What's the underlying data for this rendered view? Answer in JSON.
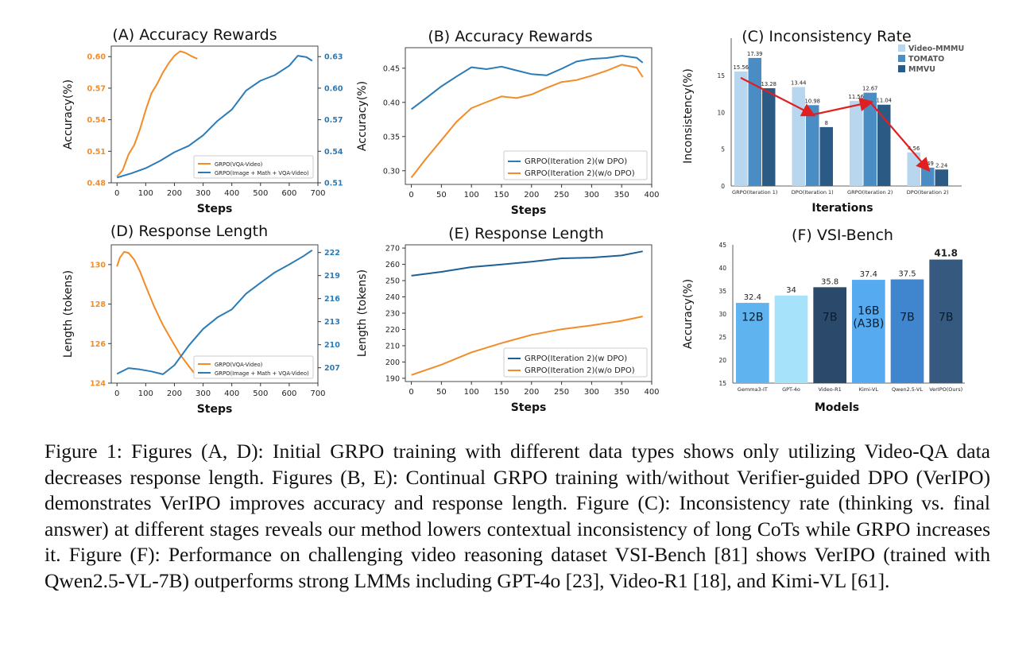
{
  "caption": "Figure 1: Figures (A, D): Initial GRPO training with different data types shows only utilizing Video-QA data decreases response length. Figures (B, E): Continual GRPO training with/without Verifier-guided DPO (VerIPO) demonstrates VerIPO improves accuracy and response length. Figure (C): Inconsistency rate (thinking vs.  final answer) at different stages reveals our method lowers contextual inconsistency of long CoTs while GRPO increases it.  Figure (F): Performance on challenging video reasoning dataset VSI-Bench [81] shows VerIPO (trained with Qwen2.5-VL-7B) outperforms strong LMMs including GPT-4o [23], Video-R1 [18], and Kimi-VL [61].",
  "colors": {
    "orange": "#f28c28",
    "blue": "#2c7bb6",
    "darkblue": "#1f5f94",
    "red": "#e02020"
  },
  "chart_data": [
    {
      "id": "A",
      "type": "line",
      "title": "(A)  Accuracy Rewards",
      "xlabel": "Steps",
      "ylabel": "Accuracy(%)",
      "xlim": [
        -20,
        700
      ],
      "xticks": [
        "0",
        "100",
        "200",
        "300",
        "400",
        "500",
        "600",
        "700"
      ],
      "ylim": [
        0.48,
        0.61
      ],
      "yticks": [
        "0.48",
        "0.51",
        "0.54",
        "0.57",
        "0.60"
      ],
      "y2lim": [
        0.51,
        0.64
      ],
      "y2ticks": [
        "0.51",
        "0.54",
        "0.57",
        "0.60",
        "0.63"
      ],
      "legend_position": "lower-right",
      "series": [
        {
          "name": "GRPO(VQA-Video)",
          "axis": "left",
          "color": "orange",
          "x": [
            0,
            20,
            40,
            60,
            80,
            100,
            120,
            140,
            160,
            180,
            200,
            220,
            240,
            260,
            280
          ],
          "y": [
            0.486,
            0.493,
            0.508,
            0.516,
            0.53,
            0.548,
            0.565,
            0.575,
            0.586,
            0.594,
            0.6,
            0.604,
            0.603,
            0.601,
            0.598
          ]
        },
        {
          "name": "GRPO(Image + Math + VQA-Video)",
          "axis": "right",
          "color": "blue",
          "x": [
            0,
            50,
            100,
            150,
            200,
            250,
            300,
            350,
            400,
            450,
            500,
            550,
            600,
            630,
            660,
            680
          ],
          "y": [
            0.515,
            0.52,
            0.524,
            0.53,
            0.538,
            0.545,
            0.556,
            0.57,
            0.58,
            0.597,
            0.606,
            0.612,
            0.622,
            0.632,
            0.63,
            0.626
          ]
        }
      ]
    },
    {
      "id": "B",
      "type": "line",
      "title": "(B)  Accuracy Rewards",
      "xlabel": "Steps",
      "ylabel": "Accuracy(%)",
      "xlim": [
        -10,
        400
      ],
      "xticks": [
        "0",
        "50",
        "100",
        "150",
        "200",
        "250",
        "300",
        "350",
        "400"
      ],
      "ylim": [
        0.28,
        0.48
      ],
      "yticks": [
        "0.30",
        "0.35",
        "0.40",
        "0.45"
      ],
      "legend_position": "lower-right",
      "series": [
        {
          "name": "GRPO(Iteration 2)(w DPO)",
          "color": "blue",
          "x": [
            0,
            25,
            50,
            75,
            100,
            125,
            150,
            175,
            200,
            225,
            250,
            275,
            300,
            325,
            350,
            375,
            385
          ],
          "y": [
            0.39,
            0.408,
            0.425,
            0.438,
            0.45,
            0.447,
            0.452,
            0.448,
            0.443,
            0.44,
            0.448,
            0.458,
            0.463,
            0.466,
            0.47,
            0.466,
            0.458
          ]
        },
        {
          "name": "GRPO(Iteration 2)(w/o DPO)",
          "color": "orange",
          "x": [
            0,
            25,
            50,
            75,
            100,
            125,
            150,
            175,
            200,
            225,
            250,
            275,
            300,
            325,
            350,
            375,
            385
          ],
          "y": [
            0.29,
            0.32,
            0.345,
            0.37,
            0.39,
            0.4,
            0.41,
            0.408,
            0.412,
            0.42,
            0.428,
            0.432,
            0.44,
            0.448,
            0.456,
            0.45,
            0.437
          ]
        }
      ]
    },
    {
      "id": "C",
      "type": "bar",
      "title": "(C)  Inconsistency Rate",
      "xlabel": "Iterations",
      "ylabel": "Inconsistency(%)",
      "ylim": [
        0,
        19
      ],
      "yticks": [
        "0",
        "5",
        "10",
        "15"
      ],
      "legend_position": "top-right",
      "categories": [
        "GRPO(Iteration 1)",
        "DPO(Iteration 1)",
        "GRPO(Iteration 2)",
        "DPO(Iteration 2)"
      ],
      "series": [
        {
          "name": "Video-MMMU",
          "color": "#b8d6ee",
          "values": [
            15.56,
            13.44,
            11.56,
            4.56
          ],
          "labels": [
            "15.56",
            "13.44",
            "11.56",
            "4.56"
          ]
        },
        {
          "name": "TOMATO",
          "color": "#4a8cc4",
          "values": [
            17.39,
            10.98,
            12.67,
            2.49
          ],
          "labels": [
            "17.39",
            "10.98",
            "12.67",
            "2.49"
          ]
        },
        {
          "name": "MMVU",
          "color": "#2b5a85",
          "values": [
            13.28,
            8,
            11.04,
            2.24
          ],
          "labels": [
            "13.28",
            "8",
            "11.04",
            "2.24"
          ]
        }
      ]
    },
    {
      "id": "D",
      "type": "line",
      "title": "(D)  Response Length",
      "xlabel": "Steps",
      "ylabel": "Length (tokens)",
      "xlim": [
        -20,
        700
      ],
      "xticks": [
        "0",
        "100",
        "200",
        "300",
        "400",
        "500",
        "600",
        "700"
      ],
      "ylim": [
        124,
        131
      ],
      "yticks": [
        "124",
        "126",
        "128",
        "130"
      ],
      "y2lim": [
        205,
        223
      ],
      "y2ticks": [
        "207",
        "210",
        "213",
        "216",
        "219",
        "222"
      ],
      "legend_position": "lower-right",
      "series": [
        {
          "name": "GRPO(VQA-Video)",
          "axis": "left",
          "color": "orange",
          "x": [
            0,
            10,
            25,
            40,
            60,
            80,
            100,
            130,
            160,
            190,
            220,
            250,
            280
          ],
          "y": [
            129.9,
            130.4,
            130.7,
            130.6,
            130.2,
            129.6,
            128.9,
            127.9,
            127.0,
            126.2,
            125.4,
            124.8,
            124.3
          ]
        },
        {
          "name": "GRPO(Image + Math + VQA-Video)",
          "axis": "right",
          "color": "blue",
          "x": [
            0,
            40,
            80,
            120,
            160,
            200,
            250,
            300,
            350,
            400,
            450,
            500,
            550,
            600,
            650,
            680
          ],
          "y": [
            206.2,
            207.1,
            206.8,
            206.4,
            206.0,
            207.3,
            210.0,
            212.2,
            213.6,
            214.5,
            216.5,
            218.0,
            219.5,
            220.6,
            221.6,
            222.3
          ]
        }
      ]
    },
    {
      "id": "E",
      "type": "line",
      "title": "(E)  Response Length",
      "xlabel": "Steps",
      "ylabel": "Length (tokens)",
      "xlim": [
        -10,
        400
      ],
      "xticks": [
        "0",
        "50",
        "100",
        "150",
        "200",
        "250",
        "300",
        "350",
        "400"
      ],
      "ylim": [
        188,
        272
      ],
      "yticks": [
        "190",
        "200",
        "210",
        "220",
        "230",
        "240",
        "250",
        "260",
        "270"
      ],
      "legend_position": "lower-right",
      "series": [
        {
          "name": "GRPO(Iteration 2)(w DPO)",
          "color": "darkblue",
          "x": [
            0,
            50,
            100,
            150,
            200,
            250,
            300,
            350,
            385
          ],
          "y": [
            253,
            256,
            259,
            260,
            261,
            263,
            264,
            266,
            268
          ]
        },
        {
          "name": "GRPO(Iteration 2)(w/o DPO)",
          "color": "orange",
          "x": [
            0,
            50,
            100,
            150,
            200,
            250,
            300,
            350,
            385
          ],
          "y": [
            192,
            199,
            206,
            211,
            216,
            220,
            223,
            226,
            228
          ]
        }
      ]
    },
    {
      "id": "F",
      "type": "bar",
      "title": "(F)          VSI-Bench",
      "xlabel": "Models",
      "ylabel": "Accuracy(%)",
      "ylim": [
        15,
        45
      ],
      "yticks": [
        "15",
        "20",
        "25",
        "30",
        "35",
        "40",
        "45"
      ],
      "categories": [
        "Gemma3-IT",
        "GPT-4o",
        "Video-R1",
        "Kimi-VL",
        "Qwen2.5-VL",
        "VerIPO(Ours)"
      ],
      "values": [
        32.4,
        34,
        35.8,
        37.4,
        37.5,
        41.8
      ],
      "value_labels": [
        "32.4",
        "34",
        "35.8",
        "37.4",
        "37.5",
        "41.8"
      ],
      "colors": [
        "#5fb3ef",
        "#a6e3fa",
        "#2b4a6b",
        "#55aaf0",
        "#3f86cf",
        "#35597f"
      ],
      "size_labels": [
        "12B",
        "",
        "7B",
        "16B\n(A3B)",
        "7B",
        "7B"
      ]
    }
  ]
}
